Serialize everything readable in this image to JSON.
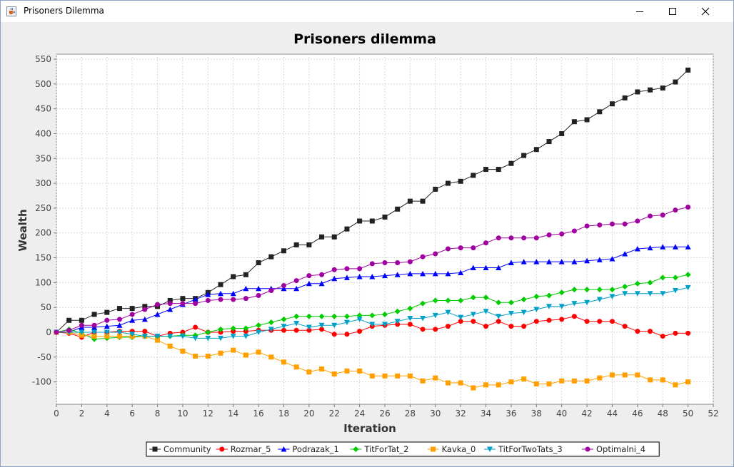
{
  "window": {
    "title": "Prisoners Dilemma",
    "icon": "java-cup-icon",
    "controls": [
      "minimize-icon",
      "maximize-icon",
      "close-icon"
    ]
  },
  "chart_data": {
    "type": "line",
    "title": "Prisoners dilemma",
    "xlabel": "Iteration",
    "ylabel": "Wealth",
    "xlim": [
      0,
      52
    ],
    "ylim": [
      -145,
      560
    ],
    "xticks": [
      0,
      2,
      4,
      6,
      8,
      10,
      12,
      14,
      16,
      18,
      20,
      22,
      24,
      26,
      28,
      30,
      32,
      34,
      36,
      38,
      40,
      42,
      44,
      46,
      48,
      50,
      52
    ],
    "yticks": [
      -100,
      -50,
      0,
      50,
      100,
      150,
      200,
      250,
      300,
      350,
      400,
      450,
      500,
      550
    ],
    "grid": true,
    "legend_position": "bottom",
    "series": [
      {
        "name": "Community",
        "color": "#222222",
        "marker": "square",
        "values": [
          0,
          24,
          24,
          36,
          40,
          48,
          48,
          52,
          52,
          64,
          68,
          68,
          80,
          96,
          112,
          116,
          140,
          152,
          164,
          176,
          176,
          192,
          192,
          208,
          224,
          224,
          232,
          248,
          264,
          264,
          288,
          300,
          304,
          316,
          328,
          328,
          340,
          356,
          368,
          384,
          400,
          424,
          428,
          444,
          460,
          472,
          484,
          488,
          492,
          504,
          528
        ]
      },
      {
        "name": "Rozmar_5",
        "color": "#ff0000",
        "marker": "circle",
        "values": [
          0,
          -2,
          -10,
          0,
          0,
          2,
          2,
          2,
          -8,
          -2,
          0,
          10,
          0,
          0,
          2,
          2,
          4,
          4,
          4,
          4,
          4,
          6,
          -4,
          -4,
          2,
          12,
          14,
          16,
          16,
          6,
          6,
          12,
          22,
          22,
          12,
          22,
          12,
          12,
          22,
          24,
          26,
          32,
          22,
          22,
          22,
          12,
          2,
          2,
          -8,
          -2,
          -2
        ]
      },
      {
        "name": "Podrazak_1",
        "color": "#0000ff",
        "marker": "triangle-up",
        "values": [
          0,
          0,
          10,
          10,
          12,
          14,
          24,
          26,
          36,
          46,
          56,
          66,
          76,
          78,
          78,
          88,
          88,
          88,
          88,
          88,
          98,
          98,
          108,
          110,
          112,
          112,
          114,
          116,
          118,
          118,
          118,
          118,
          120,
          130,
          130,
          130,
          140,
          142,
          142,
          142,
          142,
          142,
          144,
          146,
          148,
          158,
          168,
          170,
          172,
          172,
          172
        ]
      },
      {
        "name": "TitForTat_2",
        "color": "#00cc00",
        "marker": "diamond",
        "values": [
          0,
          6,
          -2,
          -14,
          -12,
          -10,
          -10,
          -8,
          -8,
          -8,
          -6,
          -6,
          0,
          6,
          8,
          8,
          14,
          20,
          26,
          32,
          32,
          32,
          32,
          32,
          34,
          34,
          36,
          42,
          48,
          58,
          64,
          64,
          64,
          70,
          70,
          60,
          60,
          66,
          72,
          74,
          80,
          86,
          86,
          86,
          86,
          92,
          98,
          100,
          110,
          110,
          116
        ]
      },
      {
        "name": "Kavka_0",
        "color": "#ffa000",
        "marker": "square",
        "values": [
          0,
          0,
          -6,
          -8,
          -8,
          -8,
          -8,
          -8,
          -16,
          -28,
          -38,
          -48,
          -48,
          -42,
          -36,
          -46,
          -40,
          -50,
          -60,
          -70,
          -80,
          -74,
          -84,
          -78,
          -78,
          -88,
          -88,
          -88,
          -88,
          -98,
          -92,
          -102,
          -102,
          -112,
          -106,
          -106,
          -100,
          -94,
          -104,
          -104,
          -98,
          -98,
          -98,
          -92,
          -86,
          -86,
          -86,
          -96,
          -96,
          -106,
          -100
        ]
      },
      {
        "name": "TitForTwoTats_3",
        "color": "#00a0c8",
        "marker": "triangle-down",
        "values": [
          0,
          0,
          0,
          0,
          0,
          0,
          -4,
          -8,
          -8,
          -8,
          -8,
          -12,
          -12,
          -12,
          -8,
          -8,
          0,
          6,
          12,
          18,
          10,
          14,
          14,
          20,
          26,
          16,
          16,
          22,
          28,
          28,
          34,
          40,
          30,
          36,
          42,
          32,
          38,
          40,
          46,
          52,
          52,
          58,
          60,
          66,
          72,
          78,
          78,
          78,
          78,
          84,
          90
        ]
      },
      {
        "name": "Optimalni_4",
        "color": "#a000a0",
        "marker": "circle",
        "values": [
          0,
          4,
          14,
          14,
          24,
          26,
          36,
          46,
          56,
          58,
          58,
          58,
          64,
          66,
          66,
          68,
          74,
          84,
          94,
          104,
          114,
          116,
          126,
          128,
          128,
          138,
          140,
          140,
          142,
          152,
          158,
          168,
          170,
          170,
          180,
          190,
          190,
          190,
          190,
          196,
          198,
          204,
          214,
          216,
          218,
          218,
          224,
          234,
          236,
          246,
          252
        ]
      }
    ]
  }
}
